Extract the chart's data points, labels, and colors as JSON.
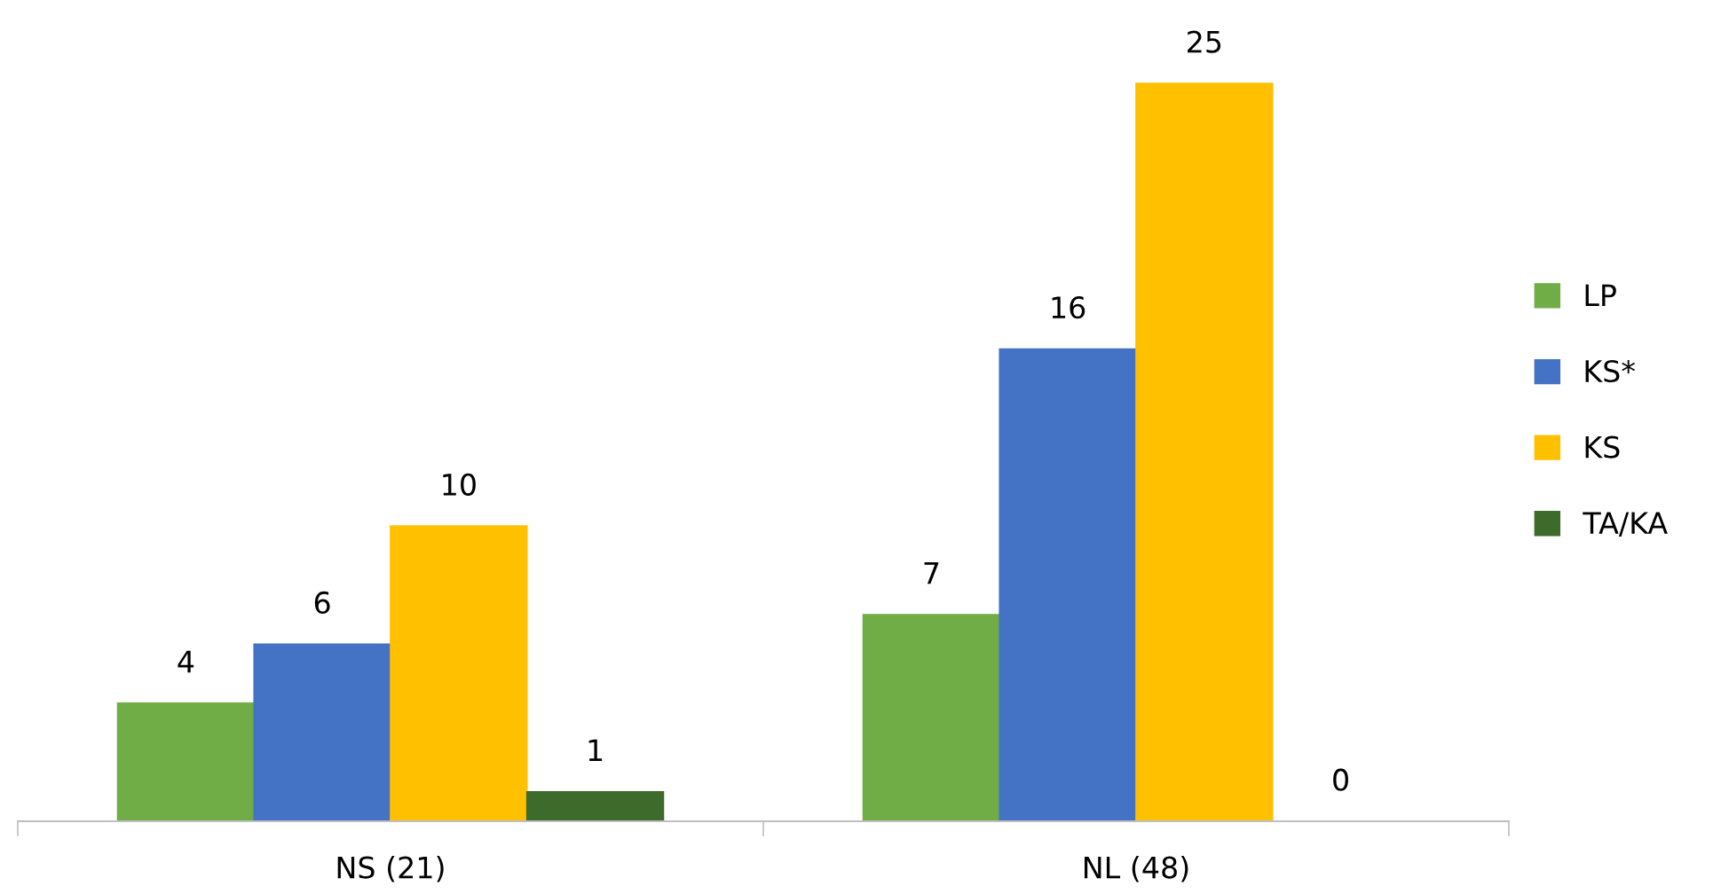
{
  "chart_data": {
    "type": "bar",
    "categories": [
      "NS (21)",
      "NL (48)"
    ],
    "series": [
      {
        "name": "LP",
        "color": "#70ad47",
        "values": [
          4,
          7
        ]
      },
      {
        "name": "KS*",
        "color": "#4472c4",
        "values": [
          6,
          16
        ]
      },
      {
        "name": "KS",
        "color": "#ffc000",
        "values": [
          10,
          25
        ]
      },
      {
        "name": "TA/KA",
        "color": "#3d6b2b",
        "values": [
          1,
          0
        ]
      }
    ],
    "data_labels": true,
    "legend": "right"
  }
}
